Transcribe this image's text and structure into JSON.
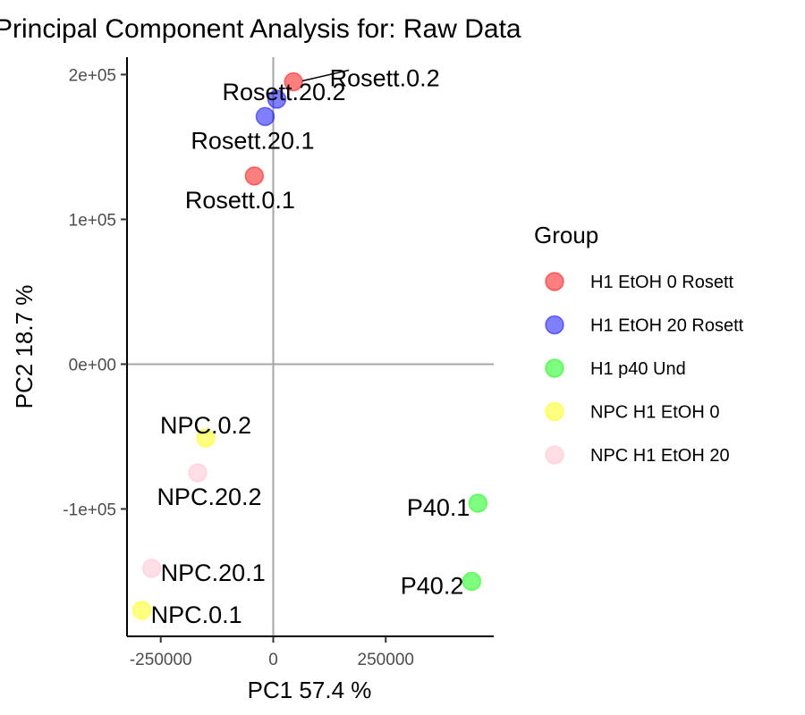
{
  "chart_data": {
    "type": "scatter",
    "title": "Principal Component Analysis for:  Raw Data",
    "xlabel": "PC1 57.4 %",
    "ylabel": "PC2 18.7 %",
    "xlim": [
      -325000,
      490000
    ],
    "ylim": [
      -188000,
      212000
    ],
    "x_ticks": [
      {
        "value": -250000,
        "label": "-250000"
      },
      {
        "value": 0,
        "label": "0"
      },
      {
        "value": 250000,
        "label": "250000"
      }
    ],
    "y_ticks": [
      {
        "value": -100000,
        "label": "-1e+05"
      },
      {
        "value": 0,
        "label": "0e+00"
      },
      {
        "value": 100000,
        "label": "1e+05"
      },
      {
        "value": 200000,
        "label": "2e+05"
      }
    ],
    "zero_lines": true,
    "grid": false,
    "legend": {
      "title": "Group",
      "placement": "right",
      "items": [
        {
          "name": "H1 EtOH 0 Rosett",
          "color": "#ff0000"
        },
        {
          "name": "H1 EtOH 20 Rosett",
          "color": "#0000ff"
        },
        {
          "name": "H1 p40 Und",
          "color": "#00ff00"
        },
        {
          "name": "NPC H1 EtOH 0",
          "color": "#ffff00"
        },
        {
          "name": "NPC H1 EtOH 20",
          "color": "#ffc0cb"
        }
      ]
    },
    "points": [
      {
        "label": "Rosett.0.2",
        "group": 0,
        "x": 45000,
        "y": 195000
      },
      {
        "label": "Rosett.20.2",
        "group": 1,
        "x": 8000,
        "y": 183000
      },
      {
        "label": "Rosett.20.1",
        "group": 1,
        "x": -18000,
        "y": 171000
      },
      {
        "label": "Rosett.0.1",
        "group": 0,
        "x": -42000,
        "y": 130000
      },
      {
        "label": "NPC.0.2",
        "group": 3,
        "x": -150000,
        "y": -51000
      },
      {
        "label": "NPC.20.2",
        "group": 4,
        "x": -168000,
        "y": -75000
      },
      {
        "label": "P40.1",
        "group": 2,
        "x": 455000,
        "y": -96000
      },
      {
        "label": "P40.2",
        "group": 2,
        "x": 441000,
        "y": -150000
      },
      {
        "label": "NPC.20.1",
        "group": 4,
        "x": -270000,
        "y": -141000
      },
      {
        "label": "NPC.0.1",
        "group": 3,
        "x": -292000,
        "y": -170000
      }
    ]
  }
}
